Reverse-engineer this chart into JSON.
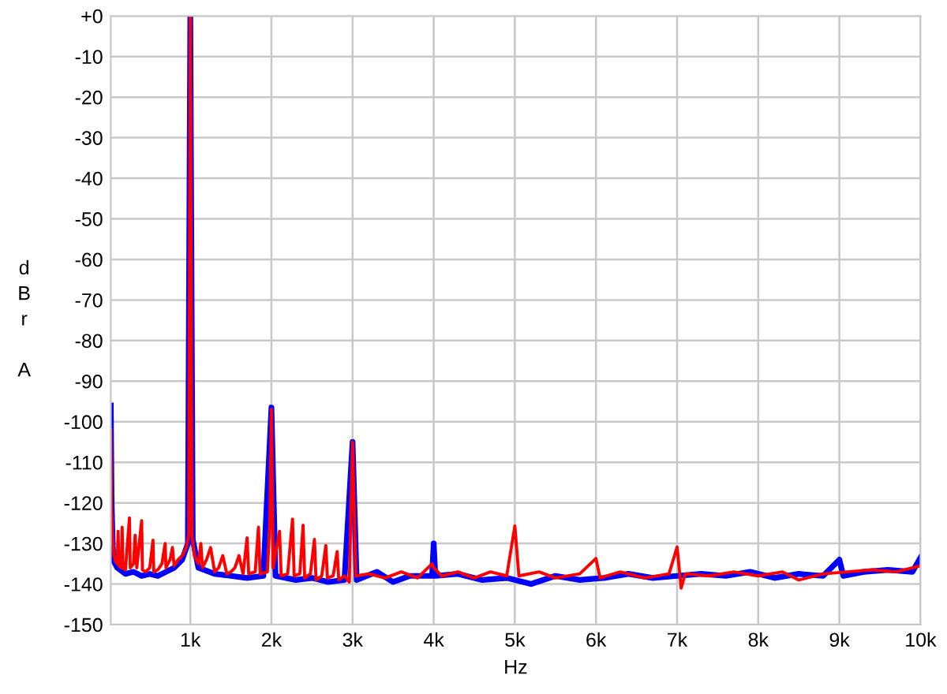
{
  "chart_data": {
    "type": "line",
    "xlabel": "Hz",
    "ylabel": "dBr A",
    "grid": true,
    "line_style": "solid",
    "marker": "none",
    "xlim": [
      20,
      10000
    ],
    "xticks": [
      {
        "value": 1000,
        "label": "1k"
      },
      {
        "value": 2000,
        "label": "2k"
      },
      {
        "value": 3000,
        "label": "3k"
      },
      {
        "value": 4000,
        "label": "4k"
      },
      {
        "value": 5000,
        "label": "5k"
      },
      {
        "value": 6000,
        "label": "6k"
      },
      {
        "value": 7000,
        "label": "7k"
      },
      {
        "value": 8000,
        "label": "8k"
      },
      {
        "value": 9000,
        "label": "9k"
      },
      {
        "value": 10000,
        "label": "10k"
      }
    ],
    "ylim": [
      -150,
      0
    ],
    "yticks": [
      -150,
      -140,
      -130,
      -120,
      -110,
      -100,
      -90,
      -80,
      -70,
      -60,
      -50,
      -40,
      -30,
      -20,
      -10,
      {
        "value": 0,
        "label": "+0"
      }
    ],
    "series": [
      {
        "color": "#0000ff",
        "x": [
          20,
          30,
          45,
          60,
          100,
          200,
          300,
          400,
          500,
          600,
          700,
          800,
          900,
          970,
          1000,
          1030,
          1100,
          1300,
          1500,
          1700,
          1900,
          2000,
          2050,
          2300,
          2500,
          2700,
          2900,
          3000,
          3050,
          3300,
          3500,
          3700,
          3980,
          4000,
          4020,
          4300,
          4600,
          4900,
          5200,
          5500,
          5800,
          6100,
          6400,
          6700,
          7000,
          7300,
          7600,
          7900,
          8200,
          8500,
          8800,
          9000,
          9050,
          9300,
          9600,
          9900,
          10000
        ],
        "values": [
          -96,
          -120,
          -131,
          -134.5,
          -136,
          -137.5,
          -137,
          -138,
          -137.5,
          -138,
          -137,
          -136,
          -134,
          -130,
          0,
          -129,
          -136,
          -137.5,
          -138,
          -138.5,
          -138,
          -96.5,
          -138,
          -139,
          -138.5,
          -139.5,
          -139,
          -105,
          -139,
          -137,
          -139.5,
          -138,
          -138,
          -130,
          -138,
          -137.5,
          -139,
          -138.5,
          -140,
          -138,
          -139,
          -138.5,
          -137.5,
          -138.5,
          -138,
          -137.5,
          -138,
          -137,
          -138.5,
          -137.5,
          -138,
          -134,
          -138,
          -137,
          -136.5,
          -137,
          -133.5
        ]
      },
      {
        "color": "#ff0000",
        "x": [
          20,
          30,
          45,
          60,
          80,
          100,
          110,
          120,
          150,
          160,
          170,
          200,
          250,
          260,
          300,
          320,
          340,
          400,
          410,
          450,
          500,
          540,
          550,
          600,
          650,
          690,
          700,
          750,
          780,
          800,
          850,
          900,
          950,
          980,
          1000,
          1020,
          1050,
          1100,
          1130,
          1150,
          1200,
          1250,
          1300,
          1350,
          1400,
          1450,
          1500,
          1550,
          1600,
          1650,
          1700,
          1720,
          1800,
          1840,
          1860,
          1950,
          1980,
          2000,
          2020,
          2100,
          2120,
          2200,
          2260,
          2280,
          2350,
          2390,
          2410,
          2480,
          2530,
          2550,
          2620,
          2670,
          2690,
          2760,
          2810,
          2830,
          2900,
          2960,
          3000,
          3040,
          3200,
          3400,
          3600,
          3800,
          3980,
          4000,
          4100,
          4300,
          4500,
          4700,
          4900,
          5000,
          5050,
          5300,
          5500,
          5800,
          6000,
          6050,
          6300,
          6600,
          6900,
          7000,
          7050,
          7100,
          7400,
          7700,
          8000,
          8300,
          8500,
          8800,
          9100,
          9400,
          9700,
          10000
        ],
        "values": [
          -102,
          -122,
          -130,
          -133,
          -134.5,
          -135,
          -127,
          -135.5,
          -136,
          -126,
          -136,
          -136.5,
          -123.7,
          -136,
          -135,
          -128,
          -136,
          -124.4,
          -136.5,
          -137,
          -136,
          -129.2,
          -137,
          -136.5,
          -135,
          -130,
          -136,
          -134,
          -131,
          -135.5,
          -134,
          -133,
          -131,
          -128,
          0,
          -128,
          -133,
          -135,
          -130,
          -136,
          -134,
          -131,
          -137,
          -136,
          -133,
          -137.5,
          -137,
          -136,
          -133,
          -137.5,
          -128.6,
          -137.5,
          -137,
          -126,
          -137.5,
          -137,
          -125,
          -97,
          -136,
          -127,
          -138,
          -137.5,
          -124,
          -138,
          -137.5,
          -125.5,
          -138.5,
          -137.5,
          -129,
          -139,
          -138,
          -130.5,
          -138.5,
          -138,
          -132,
          -139,
          -138,
          -139.5,
          -105,
          -138,
          -137.5,
          -138.5,
          -137,
          -138.5,
          -135,
          -136,
          -138,
          -137,
          -138.5,
          -137,
          -138,
          -125.7,
          -138,
          -137,
          -138.5,
          -137.5,
          -133.7,
          -138.5,
          -137,
          -138.5,
          -137.5,
          -130.9,
          -141,
          -137.5,
          -138,
          -137,
          -138,
          -137,
          -139,
          -137.5,
          -137,
          -136.5,
          -137,
          -135.5
        ]
      }
    ]
  }
}
